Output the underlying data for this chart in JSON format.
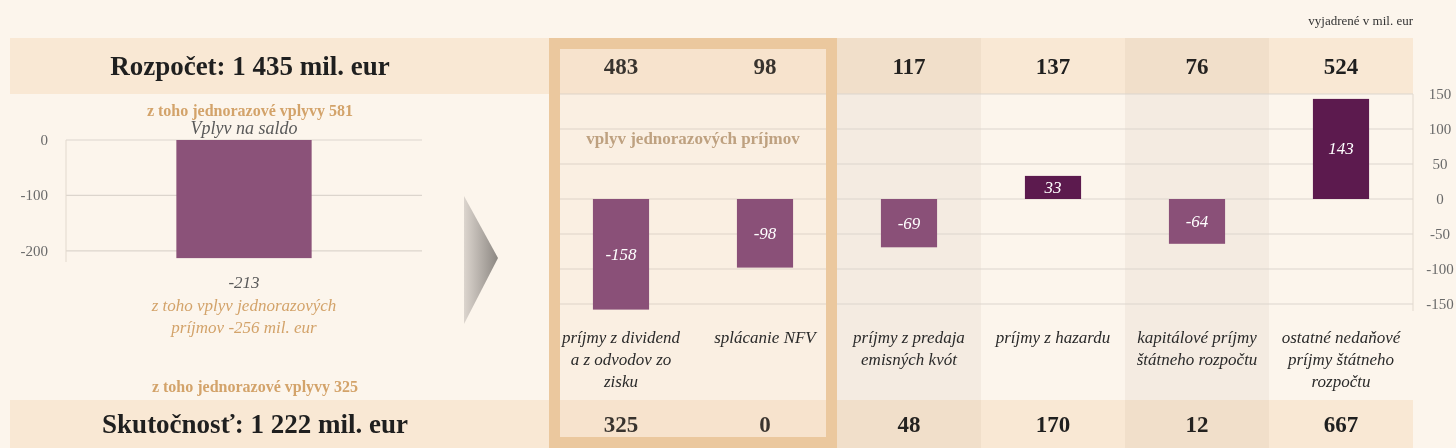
{
  "chart_data": [
    {
      "type": "other",
      "title": "Rozpočet: 1 435 mil. eur",
      "subtitle": "z toho jednorazové vplyvy 581",
      "values": [
        483,
        98,
        117,
        137,
        76,
        524
      ],
      "data_labels": true
    },
    {
      "type": "bar",
      "title": "Vplyv na saldo",
      "categories": [
        null
      ],
      "values": [
        -213
      ],
      "colors": [
        "#8b5279"
      ],
      "ylim": [
        -220,
        0
      ],
      "yticks": [
        0,
        -100,
        -200
      ],
      "grid": "y",
      "data_labels": true,
      "annotations": [
        "z toho vplyv jednorazových príjmov -256 mil. eur"
      ]
    },
    {
      "type": "bar",
      "categories": [
        "príjmy z dividend a z odvodov zo zisku",
        "splácanie NFV",
        "príjmy z predaja emisných kvót",
        "príjmy z hazardu",
        "kapitálové príjmy štátneho rozpočtu",
        "ostatné nedaňové príjmy štátneho rozpočtu"
      ],
      "values": [
        -158,
        -98,
        -69,
        33,
        -64,
        143
      ],
      "colors": [
        "#8a5078",
        "#8a5078",
        "#8a5078",
        "#5c1a4e",
        "#8a5078",
        "#5c1a4e"
      ],
      "ylim": [
        -160,
        150
      ],
      "yticks": [
        150,
        100,
        50,
        0,
        -50,
        -100,
        -150
      ],
      "grid": "y",
      "data_labels": true,
      "bands": [
        {
          "axis": "x",
          "from": "príjmy z dividend a z odvodov zo zisku",
          "to": "splácanie NFV",
          "label": "vplyv jednorazových príjmov",
          "color": "#ebc89e"
        }
      ],
      "annotations": [
        "vyjadrené v mil. eur"
      ]
    },
    {
      "type": "other",
      "title": "Skutočnosť: 1 222 mil. eur",
      "subtitle": "z toho jednorazové vplyvy 325",
      "values": [
        325,
        0,
        48,
        170,
        12,
        667
      ],
      "data_labels": true
    }
  ]
}
